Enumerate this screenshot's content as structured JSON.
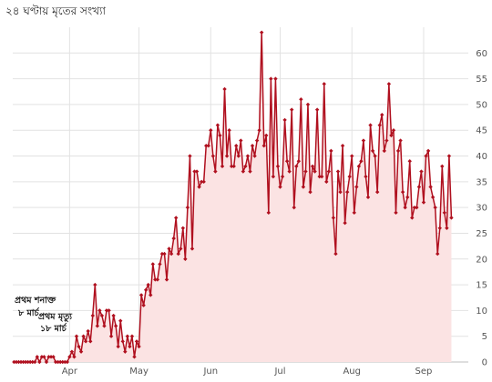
{
  "title": "২৪ ঘণ্টায় মৃতের সংখ্যা",
  "colors": {
    "line": "#b0101f",
    "area": "#fbe3e3",
    "grid": "#e2e2e2"
  },
  "chart_data": {
    "type": "line",
    "title": "২৪ ঘণ্টায় মৃতের সংখ্যা",
    "xlabel": "",
    "ylabel": "",
    "ylim": [
      0,
      65
    ],
    "yticks": [
      0,
      5,
      10,
      15,
      20,
      25,
      30,
      35,
      40,
      45,
      50,
      55,
      60
    ],
    "y_axis_side": "right",
    "grid": true,
    "x_start_date": "2020-03-08",
    "xticks": [
      {
        "label": "Apr",
        "date": "2020-04-01"
      },
      {
        "label": "May",
        "date": "2020-05-01"
      },
      {
        "label": "Jun",
        "date": "2020-06-01"
      },
      {
        "label": "Jul",
        "date": "2020-07-01"
      },
      {
        "label": "Aug",
        "date": "2020-08-01"
      },
      {
        "label": "Sep",
        "date": "2020-09-01"
      }
    ],
    "series": [
      {
        "values": [
          0,
          0,
          0,
          0,
          0,
          0,
          0,
          0,
          0,
          0,
          1,
          0,
          1,
          1,
          0,
          1,
          1,
          1,
          0,
          0,
          0,
          0,
          0,
          0,
          1,
          2,
          1,
          5,
          3,
          2,
          5,
          4,
          6,
          4,
          9,
          15,
          7,
          10,
          9,
          7,
          10,
          10,
          5,
          9,
          7,
          3,
          8,
          4,
          2,
          5,
          3,
          5,
          1,
          4,
          3,
          13,
          11,
          14,
          15,
          13,
          19,
          16,
          16,
          19,
          21,
          21,
          16,
          22,
          21,
          24,
          28,
          21,
          22,
          26,
          20,
          30,
          40,
          22,
          37,
          37,
          34,
          35,
          35,
          42,
          42,
          45,
          40,
          37,
          46,
          44,
          38,
          53,
          40,
          45,
          38,
          38,
          42,
          40,
          43,
          37,
          38,
          40,
          37,
          42,
          40,
          43,
          45,
          64,
          42,
          44,
          29,
          55,
          36,
          55,
          38,
          34,
          36,
          47,
          39,
          37,
          49,
          30,
          38,
          39,
          51,
          34,
          37,
          50,
          33,
          38,
          37,
          49,
          36,
          36,
          54,
          35,
          37,
          41,
          28,
          21,
          37,
          33,
          42,
          27,
          33,
          36,
          40,
          29,
          34,
          38,
          39,
          43,
          36,
          32,
          46,
          41,
          40,
          33,
          46,
          48,
          41,
          43,
          54,
          44,
          45,
          29,
          41,
          43,
          33,
          30,
          32,
          39,
          28,
          30,
          30,
          34,
          37,
          31,
          40,
          41,
          34,
          32,
          30,
          21,
          26,
          38,
          29,
          26,
          40,
          28
        ]
      }
    ],
    "annotations": [
      {
        "text": "প্রথম শনাক্ত",
        "date": "2020-03-08"
      },
      {
        "text": "৮ মার্চ",
        "date": "2020-03-08"
      },
      {
        "text": "প্রথম মৃত্যু",
        "date": "2020-03-18"
      },
      {
        "text": "১৮ মার্চ",
        "date": "2020-03-18"
      }
    ]
  }
}
